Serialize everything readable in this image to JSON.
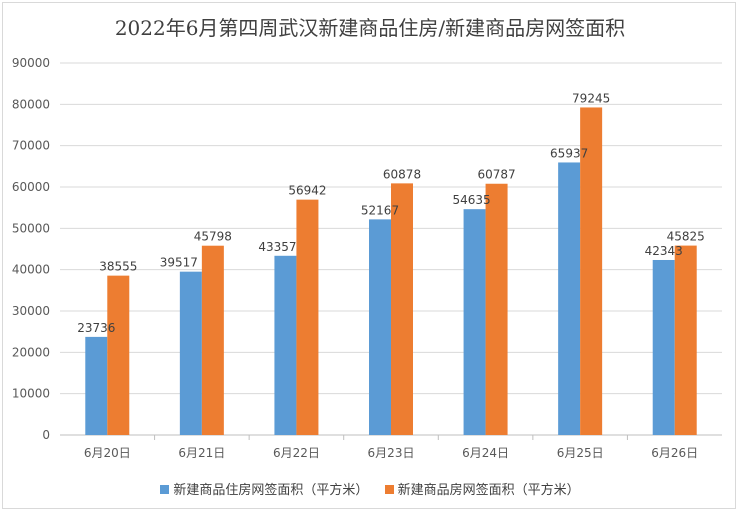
{
  "chart_data": {
    "type": "bar",
    "title": "2022年6月第四周武汉新建商品住房/新建商品房网签面积",
    "categories": [
      "6月20日",
      "6月21日",
      "6月22日",
      "6月23日",
      "6月24日",
      "6月25日",
      "6月26日"
    ],
    "series": [
      {
        "name": "新建商品住房网签面积（平方米）",
        "color": "#5b9bd5",
        "values": [
          23736,
          39517,
          43357,
          52167,
          54635,
          65937,
          42343
        ]
      },
      {
        "name": "新建商品房网签面积（平方米）",
        "color": "#ed7d31",
        "values": [
          38555,
          45798,
          56942,
          60878,
          60787,
          79245,
          45825
        ]
      }
    ],
    "ylim": [
      0,
      90000
    ],
    "yticks": [
      0,
      10000,
      20000,
      30000,
      40000,
      50000,
      60000,
      70000,
      80000,
      90000
    ],
    "grid": true,
    "legend_position": "bottom"
  }
}
